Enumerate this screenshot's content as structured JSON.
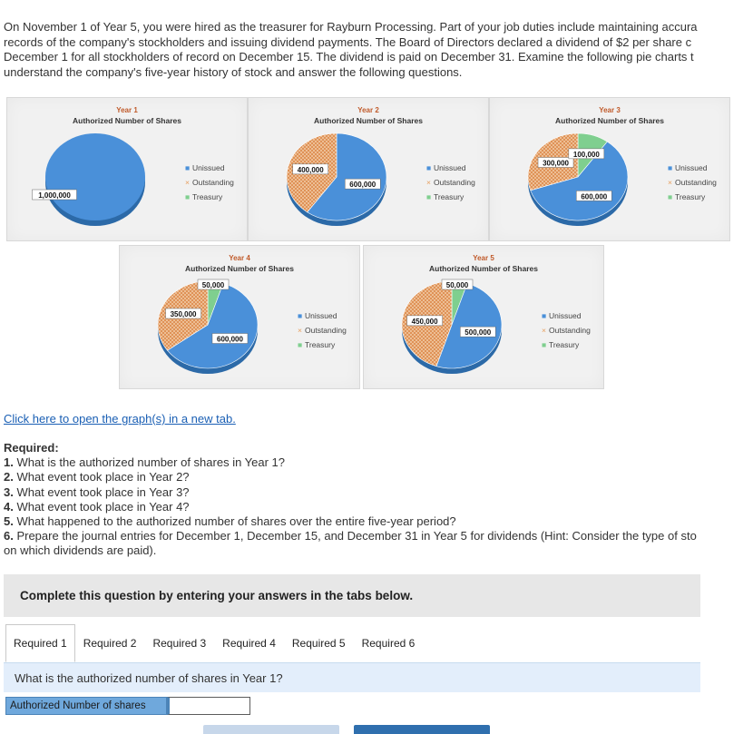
{
  "intro_lines": [
    "On November 1 of Year 5, you were hired as the treasurer for Rayburn Processing. Part of your job duties include maintaining accura",
    "records of the company's stockholders and issuing dividend payments. The Board of Directors declared a dividend of $2 per share c",
    "December 1 for all stockholders of record on December 15. The dividend is paid on December 31. Examine the following pie charts t",
    "understand the company's five-year history of stock and answer the following questions."
  ],
  "legend": {
    "unissued": "Unissued",
    "outstanding": "Outstanding",
    "treasury": "Treasury"
  },
  "colors": {
    "unissued": "#4a90d9",
    "outstanding": "#e8a060",
    "treasury": "#7fcf8f",
    "link": "#1a5fb4",
    "tab_bar": "#e3eefb",
    "answer_label": "#6fa8dc"
  },
  "chart_data": [
    {
      "type": "pie",
      "title": "Year 1",
      "subtitle": "Authorized Number of Shares",
      "categories": [
        "Unissued",
        "Outstanding",
        "Treasury"
      ],
      "values": [
        1000000,
        0,
        0
      ],
      "labels": [
        "1,000,000",
        "",
        ""
      ]
    },
    {
      "type": "pie",
      "title": "Year 2",
      "subtitle": "Authorized Number of Shares",
      "categories": [
        "Unissued",
        "Outstanding",
        "Treasury"
      ],
      "values": [
        600000,
        400000,
        0
      ],
      "labels": [
        "600,000",
        "400,000",
        ""
      ]
    },
    {
      "type": "pie",
      "title": "Year 3",
      "subtitle": "Authorized Number of Shares",
      "categories": [
        "Unissued",
        "Outstanding",
        "Treasury"
      ],
      "values": [
        600000,
        300000,
        100000
      ],
      "labels": [
        "600,000",
        "300,000",
        "100,000"
      ]
    },
    {
      "type": "pie",
      "title": "Year 4",
      "subtitle": "Authorized Number of Shares",
      "categories": [
        "Unissued",
        "Outstanding",
        "Treasury"
      ],
      "values": [
        600000,
        350000,
        50000
      ],
      "labels": [
        "600,000",
        "350,000",
        "50,000"
      ]
    },
    {
      "type": "pie",
      "title": "Year 5",
      "subtitle": "Authorized Number of Shares",
      "categories": [
        "Unissued",
        "Outstanding",
        "Treasury"
      ],
      "values": [
        500000,
        450000,
        50000
      ],
      "labels": [
        "500,000",
        "450,000",
        "50,000"
      ]
    }
  ],
  "graph_link": "Click here to open the graph(s) in a new tab.",
  "required": {
    "heading": "Required:",
    "questions": [
      {
        "num": "1.",
        "text": " What is the authorized number of shares in Year 1?"
      },
      {
        "num": "2.",
        "text": " What event took place in Year 2?"
      },
      {
        "num": "3.",
        "text": " What event took place in Year 3?"
      },
      {
        "num": "4.",
        "text": " What event took place in Year 4?"
      },
      {
        "num": "5.",
        "text": " What happened to the authorized number of shares over the entire five-year period?"
      },
      {
        "num": "6.",
        "text": " Prepare the journal entries for December 1, December 15, and December 31 in Year 5 for dividends (Hint: Consider the type of sto"
      }
    ],
    "continuation": "on which dividends are paid)."
  },
  "complete_banner": "Complete this question by entering your answers in the tabs below.",
  "tabs": [
    "Required 1",
    "Required 2",
    "Required 3",
    "Required 4",
    "Required 5",
    "Required 6"
  ],
  "active_tab": 0,
  "question_prompt": "What is the authorized number of shares in Year 1?",
  "answer": {
    "label": "Authorized Number of shares",
    "value": ""
  }
}
